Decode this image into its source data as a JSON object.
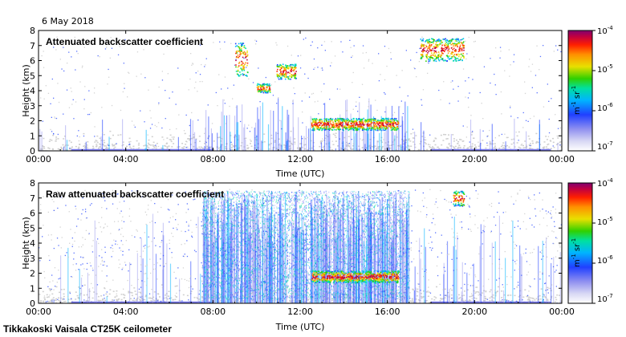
{
  "header": {
    "date": "6 May 2018"
  },
  "footer": {
    "site": "Tikkakoski Vaisala CT25K ceilometer"
  },
  "chart_data": [
    {
      "type": "heatmap",
      "title": "Attenuated backscatter coefficient",
      "xlabel": "Time (UTC)",
      "ylabel": "Height (km)",
      "x_ticks": [
        "00:00",
        "04:00",
        "08:00",
        "12:00",
        "16:00",
        "20:00",
        "00:00"
      ],
      "x_range_hours": [
        0,
        24
      ],
      "y_ticks": [
        0,
        1,
        2,
        3,
        4,
        5,
        6,
        7,
        8
      ],
      "ylim": [
        0,
        8
      ],
      "colorbar": {
        "ticks": [
          "10",
          "10",
          "10",
          "10"
        ],
        "exponents": [
          "-4",
          "-5",
          "-6",
          "-7"
        ],
        "unit": "m",
        "unit_exp": "-1",
        "unit2": "sr",
        "unit2_exp": "-1"
      },
      "features": [
        {
          "name": "cloud",
          "start_hour": 9.0,
          "end_hour": 9.6,
          "base_km": 5.0,
          "top_km": 7.2
        },
        {
          "name": "cloud",
          "start_hour": 10.0,
          "end_hour": 10.6,
          "base_km": 3.9,
          "top_km": 4.5
        },
        {
          "name": "cloud",
          "start_hour": 10.9,
          "end_hour": 11.8,
          "base_km": 4.8,
          "top_km": 5.8
        },
        {
          "name": "cloud",
          "start_hour": 12.5,
          "end_hour": 16.5,
          "base_km": 1.4,
          "top_km": 2.2
        },
        {
          "name": "cloud",
          "start_hour": 17.5,
          "end_hour": 19.5,
          "base_km": 6.0,
          "top_km": 7.5
        }
      ]
    },
    {
      "type": "heatmap",
      "title": "Raw attenuated backscatter coefficient",
      "xlabel": "Time (UTC)",
      "ylabel": "Height (km)",
      "x_ticks": [
        "00:00",
        "04:00",
        "08:00",
        "12:00",
        "16:00",
        "20:00",
        "00:00"
      ],
      "x_range_hours": [
        0,
        24
      ],
      "y_ticks": [
        0,
        1,
        2,
        3,
        4,
        5,
        6,
        7,
        8
      ],
      "ylim": [
        0,
        8
      ],
      "colorbar": {
        "ticks": [
          "10",
          "10",
          "10",
          "10"
        ],
        "exponents": [
          "-4",
          "-5",
          "-6",
          "-7"
        ],
        "unit": "m",
        "unit_exp": "-1",
        "unit2": "sr",
        "unit2_exp": "-1"
      },
      "features": [
        {
          "name": "noise",
          "start_hour": 7.5,
          "end_hour": 17.0,
          "base_km": 0.3,
          "top_km": 7.5
        },
        {
          "name": "cloud",
          "start_hour": 12.5,
          "end_hour": 16.5,
          "base_km": 1.4,
          "top_km": 2.2
        },
        {
          "name": "cloud",
          "start_hour": 19.0,
          "end_hour": 19.5,
          "base_km": 6.5,
          "top_km": 7.5
        }
      ]
    }
  ]
}
